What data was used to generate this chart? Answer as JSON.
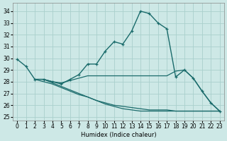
{
  "xlabel": "Humidex (Indice chaleur)",
  "background_color": "#cde8e6",
  "grid_color": "#aad0cc",
  "line_color": "#1a6b6b",
  "ylim": [
    24.7,
    34.7
  ],
  "xlim": [
    -0.5,
    23.5
  ],
  "yticks": [
    25,
    26,
    27,
    28,
    29,
    30,
    31,
    32,
    33,
    34
  ],
  "xticks": [
    0,
    1,
    2,
    3,
    4,
    5,
    6,
    7,
    8,
    9,
    10,
    11,
    12,
    13,
    14,
    15,
    16,
    17,
    18,
    19,
    20,
    21,
    22,
    23
  ],
  "series": [
    {
      "x": [
        0,
        1,
        2,
        3,
        4,
        5,
        6,
        7,
        8,
        9,
        10,
        11,
        12,
        13,
        14,
        15,
        16,
        17,
        18,
        19,
        20,
        21,
        22,
        23
      ],
      "y": [
        29.9,
        29.3,
        28.2,
        28.2,
        28.0,
        27.8,
        28.2,
        28.6,
        29.5,
        29.5,
        30.6,
        31.4,
        31.2,
        32.3,
        34.0,
        33.8,
        33.0,
        32.5,
        28.4,
        29.0,
        28.3,
        27.2,
        26.2,
        25.5
      ],
      "marker": true,
      "lw": 1.0
    },
    {
      "x": [
        2,
        3,
        4,
        5,
        6,
        7,
        8,
        9,
        10,
        11,
        12,
        13,
        14,
        15,
        16,
        17,
        18,
        19,
        20,
        21,
        22,
        23
      ],
      "y": [
        28.2,
        28.2,
        28.0,
        27.9,
        28.1,
        28.3,
        28.5,
        28.5,
        28.5,
        28.5,
        28.5,
        28.5,
        28.5,
        28.5,
        28.5,
        28.5,
        28.9,
        29.0,
        28.3,
        27.2,
        26.2,
        25.5
      ],
      "marker": false,
      "lw": 0.9
    },
    {
      "x": [
        2,
        3,
        4,
        5,
        6,
        7,
        8,
        9,
        10,
        11,
        12,
        13,
        14,
        15,
        16,
        17,
        18,
        19,
        20,
        21,
        22,
        23
      ],
      "y": [
        28.2,
        28.0,
        27.8,
        27.5,
        27.2,
        26.9,
        26.7,
        26.4,
        26.2,
        26.0,
        25.9,
        25.8,
        25.7,
        25.6,
        25.6,
        25.6,
        25.5,
        25.5,
        25.5,
        25.5,
        25.5,
        25.5
      ],
      "marker": false,
      "lw": 0.9
    },
    {
      "x": [
        3,
        4,
        5,
        6,
        7,
        8,
        9,
        10,
        11,
        12,
        13,
        14,
        15,
        16,
        17,
        18,
        19,
        20,
        21,
        22,
        23
      ],
      "y": [
        28.2,
        27.9,
        27.6,
        27.3,
        27.0,
        26.7,
        26.4,
        26.1,
        25.9,
        25.7,
        25.6,
        25.5,
        25.5,
        25.5,
        25.5,
        25.5,
        25.5,
        25.5,
        25.5,
        25.5,
        25.5
      ],
      "marker": false,
      "lw": 0.9
    }
  ]
}
